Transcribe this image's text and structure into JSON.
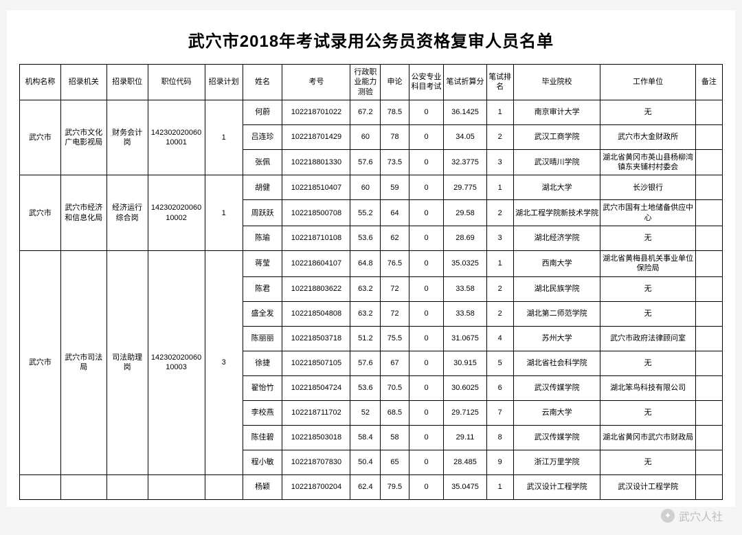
{
  "title": "武穴市2018年考试录用公务员资格复审人员名单",
  "headers": {
    "org": "机构名称",
    "agency": "招录机关",
    "position": "招录职位",
    "code": "职位代码",
    "plan": "招录计划",
    "name": "姓名",
    "exam_no": "考号",
    "admin": "行政职业能力测验",
    "essay": "申论",
    "police": "公安专业科目考试",
    "score": "笔试折算分",
    "rank": "笔试排名",
    "school": "毕业院校",
    "work": "工作单位",
    "note": "备注"
  },
  "groups": [
    {
      "org": "武穴市",
      "agency": "武穴市文化广电影视局",
      "position": "财务会计岗",
      "code": "14230202006010001",
      "plan": "1",
      "rows": [
        {
          "name": "何蔚",
          "exam": "102218701022",
          "admin": "67.2",
          "essay": "78.5",
          "police": "0",
          "score": "36.1425",
          "rank": "1",
          "school": "南京审计大学",
          "work": "无"
        },
        {
          "name": "吕连珍",
          "exam": "102218701429",
          "admin": "60",
          "essay": "78",
          "police": "0",
          "score": "34.05",
          "rank": "2",
          "school": "武汉工商学院",
          "work": "武穴市大金财政所"
        },
        {
          "name": "张佩",
          "exam": "102218801330",
          "admin": "57.6",
          "essay": "73.5",
          "police": "0",
          "score": "32.3775",
          "rank": "3",
          "school": "武汉晴川学院",
          "work": "湖北省黄冈市英山县杨柳湾镇东夹铺村村委会"
        }
      ]
    },
    {
      "org": "武穴市",
      "agency": "武穴市经济和信息化局",
      "position": "经济运行综合岗",
      "code": "14230202006010002",
      "plan": "1",
      "rows": [
        {
          "name": "胡健",
          "exam": "102218510407",
          "admin": "60",
          "essay": "59",
          "police": "0",
          "score": "29.775",
          "rank": "1",
          "school": "湖北大学",
          "work": "长沙银行"
        },
        {
          "name": "周跃跃",
          "exam": "102218500708",
          "admin": "55.2",
          "essay": "64",
          "police": "0",
          "score": "29.58",
          "rank": "2",
          "school": "湖北工程学院新技术学院",
          "work": "武穴市国有土地储备供应中心"
        },
        {
          "name": "陈瑜",
          "exam": "102218710108",
          "admin": "53.6",
          "essay": "62",
          "police": "0",
          "score": "28.69",
          "rank": "3",
          "school": "湖北经济学院",
          "work": "无"
        }
      ]
    },
    {
      "org": "武穴市",
      "agency": "武穴市司法局",
      "position": "司法助理岗",
      "code": "14230202006010003",
      "plan": "3",
      "rows": [
        {
          "name": "蒋莹",
          "exam": "102218604107",
          "admin": "64.8",
          "essay": "76.5",
          "police": "0",
          "score": "35.0325",
          "rank": "1",
          "school": "西南大学",
          "work": "湖北省黄梅县机关事业单位保险局"
        },
        {
          "name": "陈君",
          "exam": "102218803622",
          "admin": "63.2",
          "essay": "72",
          "police": "0",
          "score": "33.58",
          "rank": "2",
          "school": "湖北民族学院",
          "work": "无"
        },
        {
          "name": "盛全发",
          "exam": "102218504808",
          "admin": "63.2",
          "essay": "72",
          "police": "0",
          "score": "33.58",
          "rank": "2",
          "school": "湖北第二师范学院",
          "work": "无"
        },
        {
          "name": "陈丽丽",
          "exam": "102218503718",
          "admin": "51.2",
          "essay": "75.5",
          "police": "0",
          "score": "31.0675",
          "rank": "4",
          "school": "苏州大学",
          "work": "武穴市政府法律顾问室"
        },
        {
          "name": "徐捷",
          "exam": "102218507105",
          "admin": "57.6",
          "essay": "67",
          "police": "0",
          "score": "30.915",
          "rank": "5",
          "school": "湖北省社会科学院",
          "work": "无"
        },
        {
          "name": "翟怡竹",
          "exam": "102218504724",
          "admin": "53.6",
          "essay": "70.5",
          "police": "0",
          "score": "30.6025",
          "rank": "6",
          "school": "武汉传媒学院",
          "work": "湖北笨鸟科技有限公司"
        },
        {
          "name": "李校燕",
          "exam": "102218711702",
          "admin": "52",
          "essay": "68.5",
          "police": "0",
          "score": "29.7125",
          "rank": "7",
          "school": "云南大学",
          "work": "无"
        },
        {
          "name": "陈佳碧",
          "exam": "102218503018",
          "admin": "58.4",
          "essay": "58",
          "police": "0",
          "score": "29.11",
          "rank": "8",
          "school": "武汉传媒学院",
          "work": "湖北省黄冈市武穴市财政局"
        },
        {
          "name": "程小敏",
          "exam": "102218707830",
          "admin": "50.4",
          "essay": "65",
          "police": "0",
          "score": "28.485",
          "rank": "9",
          "school": "浙江万里学院",
          "work": "无"
        }
      ]
    }
  ],
  "trailing_row": {
    "name": "杨颖",
    "exam": "102218700204",
    "admin": "62.4",
    "essay": "79.5",
    "police": "0",
    "score": "35.0475",
    "rank": "1",
    "school": "武汉设计工程学院",
    "work": "武汉设计工程学院"
  },
  "watermark": "武穴人社"
}
